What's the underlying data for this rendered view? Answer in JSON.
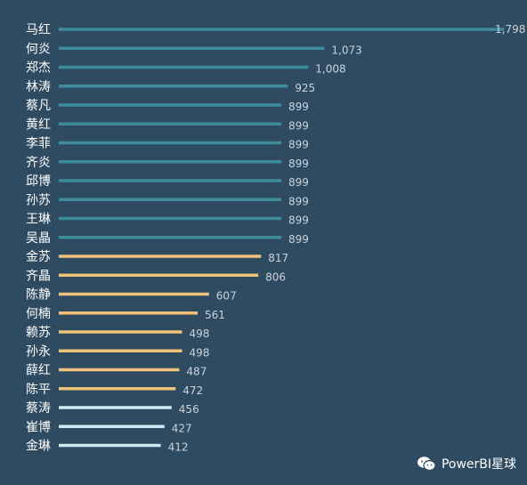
{
  "chart_data": {
    "type": "bar",
    "orientation": "horizontal",
    "categories": [
      "马红",
      "何炎",
      "郑杰",
      "林涛",
      "蔡凡",
      "黄红",
      "李菲",
      "齐炎",
      "邱博",
      "孙苏",
      "王琳",
      "吴晶",
      "金苏",
      "齐晶",
      "陈静",
      "何楠",
      "赖苏",
      "孙永",
      "薛红",
      "陈平",
      "蔡涛",
      "崔博",
      "金琳"
    ],
    "values": [
      1798,
      1073,
      1008,
      925,
      899,
      899,
      899,
      899,
      899,
      899,
      899,
      899,
      817,
      806,
      607,
      561,
      498,
      498,
      487,
      472,
      456,
      427,
      412
    ],
    "value_labels": [
      "1,798",
      "1,073",
      "1,008",
      "925",
      "899",
      "899",
      "899",
      "899",
      "899",
      "899",
      "899",
      "899",
      "817",
      "806",
      "607",
      "561",
      "498",
      "498",
      "487",
      "472",
      "456",
      "427",
      "412"
    ],
    "bar_colors": [
      "#3d8d9c",
      "#3d8d9c",
      "#3d8d9c",
      "#3d8d9c",
      "#3d8d9c",
      "#3d8d9c",
      "#3d8d9c",
      "#3d8d9c",
      "#3d8d9c",
      "#3d8d9c",
      "#3d8d9c",
      "#3d8d9c",
      "#f0c27b",
      "#f0c27b",
      "#f0c27b",
      "#f0c27b",
      "#f0c27b",
      "#f0c27b",
      "#f0c27b",
      "#f0c27b",
      "#cfe8f3",
      "#cfe8f3",
      "#cfe8f3"
    ],
    "xlim": [
      0,
      1798
    ],
    "grid": false,
    "legend": "none"
  },
  "watermark": {
    "text": "PowerBI星球",
    "icon": "wechat-icon"
  },
  "colors": {
    "background": "#2f4b62",
    "group_high": "#3d8d9c",
    "group_mid": "#f0c27b",
    "group_low": "#cfe8f3"
  }
}
